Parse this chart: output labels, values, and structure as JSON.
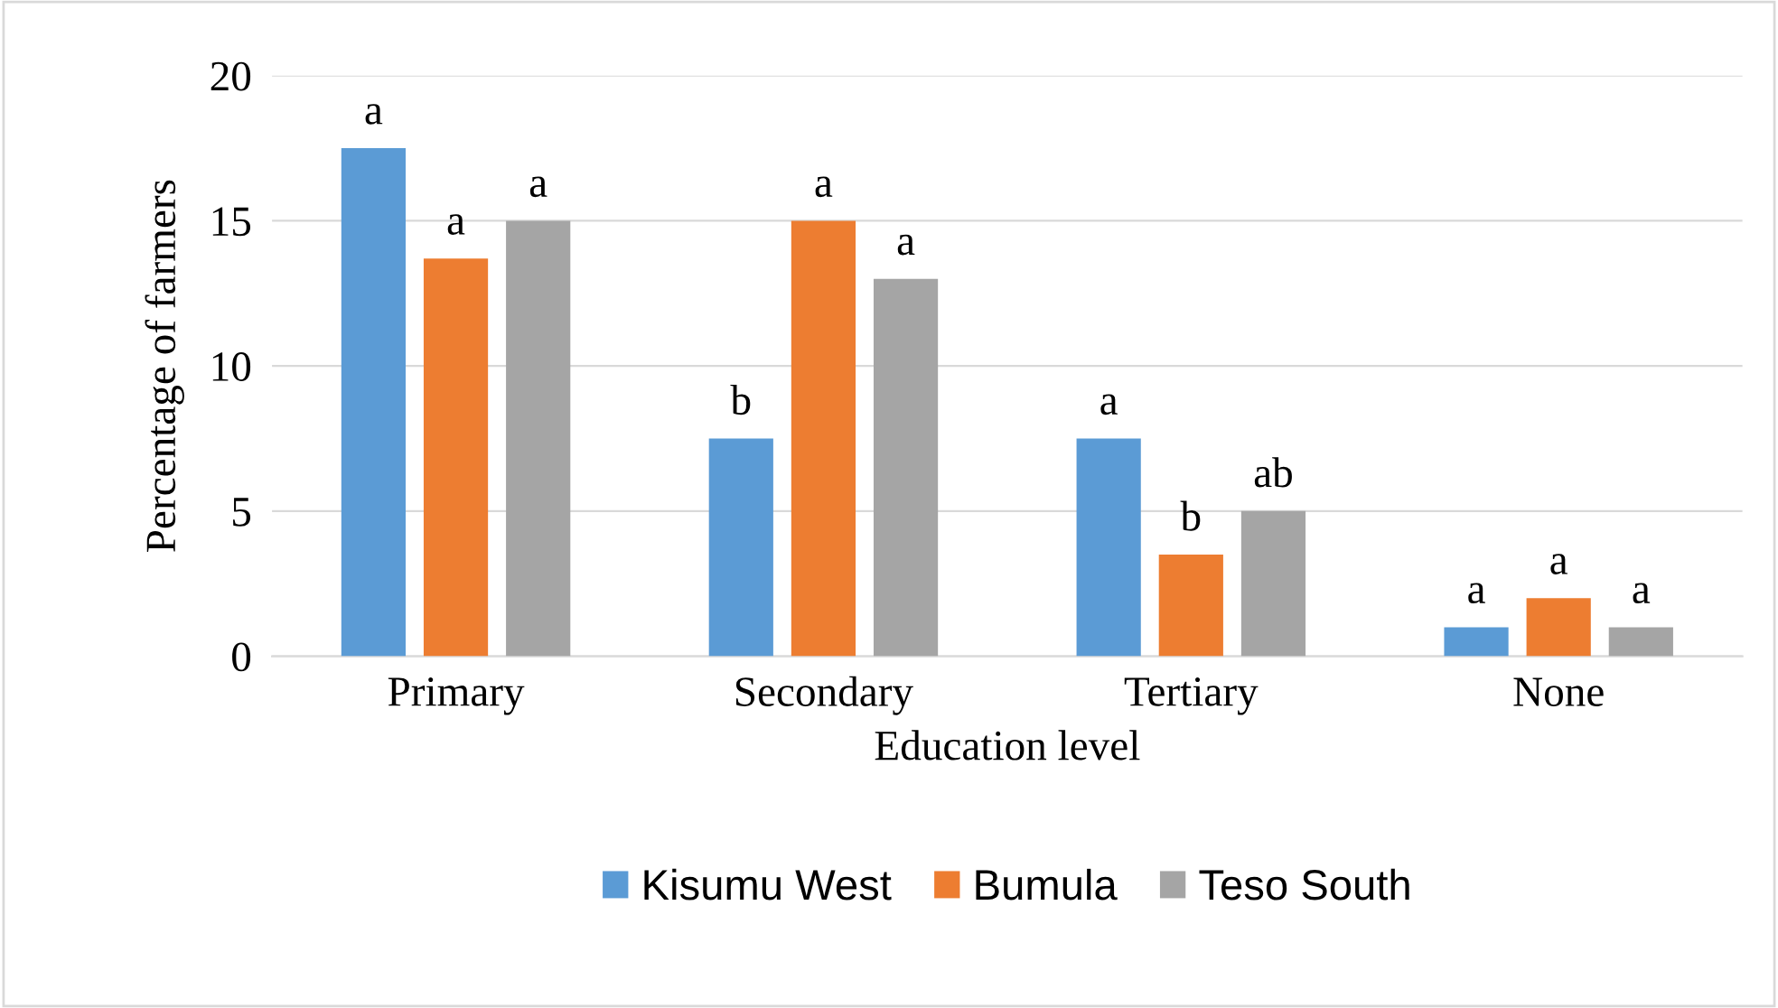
{
  "chart_data": {
    "type": "bar",
    "xlabel": "Education level",
    "ylabel": "Percentage of farmers",
    "categories": [
      "Primary",
      "Secondary",
      "Tertiary",
      "None"
    ],
    "series": [
      {
        "name": "Kisumu West",
        "color": "#5b9bd5",
        "values": [
          17.5,
          7.5,
          7.5,
          1
        ],
        "value_labels": [
          "a",
          "b",
          "a",
          "a"
        ]
      },
      {
        "name": "Bumula",
        "color": "#ed7d31",
        "values": [
          13.7,
          15,
          3.5,
          2
        ],
        "value_labels": [
          "a",
          "a",
          "b",
          "a"
        ]
      },
      {
        "name": "Teso South",
        "color": "#a5a5a5",
        "values": [
          15,
          13,
          5,
          1
        ],
        "value_labels": [
          "a",
          "a",
          "ab",
          "a"
        ]
      }
    ],
    "ylim": [
      0,
      20
    ],
    "yticks": [
      0,
      5,
      10,
      15,
      20
    ],
    "grid": "y",
    "legend": "bottom"
  }
}
